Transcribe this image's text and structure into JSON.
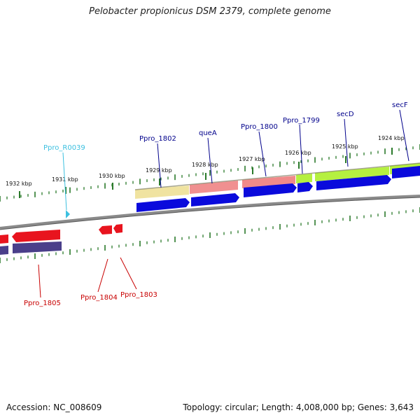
{
  "title": "Pelobacter propionicus DSM 2379, complete genome",
  "footer": {
    "accession": "Accession: NC_008609",
    "summary": "Topology: circular; Length: 4,008,000 bp; Genes: 3,643"
  },
  "colors": {
    "backbone": "#8a8a8a",
    "tick": "#2a7a2a",
    "forward_gene": "#0a0adc",
    "reverse_gene": "#e8141e",
    "reverse_cds": "#4a3f8a",
    "label_forward": "#00008b",
    "label_reverse": "#c80000",
    "label_rna": "#3cc0e0"
  },
  "kbp_labels": [
    {
      "text": "1932 kbp"
    },
    {
      "text": "1931 kbp"
    },
    {
      "text": "1930 kbp"
    },
    {
      "text": "1929 kbp"
    },
    {
      "text": "1928 kbp"
    },
    {
      "text": "1927 kbp"
    },
    {
      "text": "1926 kbp"
    },
    {
      "text": "1925 kbp"
    },
    {
      "text": "1924 kbp"
    }
  ],
  "gene_labels": [
    {
      "text": "Ppro_R0039",
      "kind": "rna"
    },
    {
      "text": "Ppro_1802",
      "kind": "forward"
    },
    {
      "text": "queA",
      "kind": "forward"
    },
    {
      "text": "Ppro_1800",
      "kind": "forward"
    },
    {
      "text": "Ppro_1799",
      "kind": "forward"
    },
    {
      "text": "secD",
      "kind": "forward"
    },
    {
      "text": "secF",
      "kind": "forward"
    },
    {
      "text": "Ppro_1805",
      "kind": "reverse"
    },
    {
      "text": "Ppro_1804",
      "kind": "reverse"
    },
    {
      "text": "Ppro_1803",
      "kind": "reverse"
    }
  ]
}
